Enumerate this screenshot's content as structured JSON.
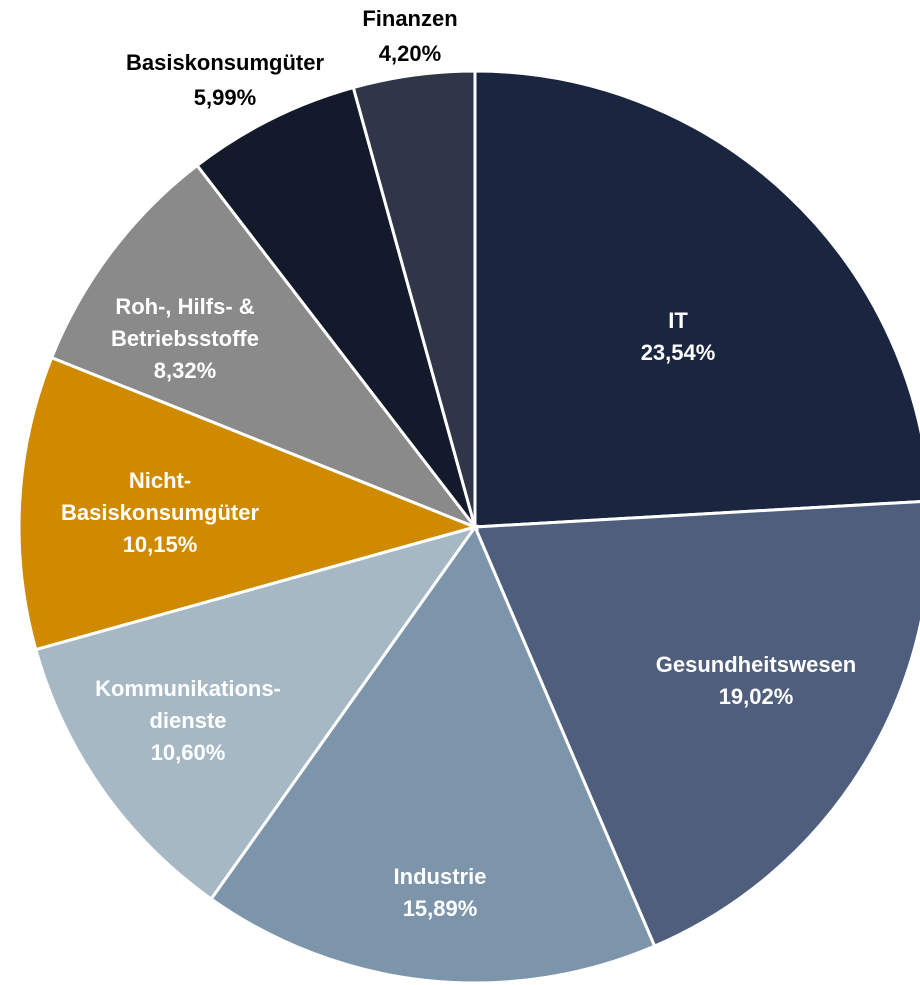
{
  "chart_data": {
    "type": "pie",
    "categories": [
      [
        "IT"
      ],
      [
        "Gesundheitswesen"
      ],
      [
        "Industrie"
      ],
      [
        "Kommunikations-",
        "dienste"
      ],
      [
        "Nicht-",
        "Basiskonsumgüter"
      ],
      [
        "Roh-, Hilfs- &",
        "Betriebsstoffe"
      ],
      [
        "Basiskonsumgüter"
      ],
      [
        "Finanzen"
      ]
    ],
    "values": [
      23.54,
      19.02,
      15.89,
      10.6,
      10.15,
      8.32,
      5.99,
      4.2
    ],
    "value_labels": [
      "23,54%",
      "19,02%",
      "15,89%",
      "10,60%",
      "10,15%",
      "8,32%",
      "5,99%",
      "4,20%"
    ],
    "colors": [
      "#1a2540",
      "#4e5e7c",
      "#7d95aa",
      "#a7b8c5",
      "#d08a00",
      "#8a8a8a",
      "#131a2b",
      "#2e3648"
    ]
  }
}
